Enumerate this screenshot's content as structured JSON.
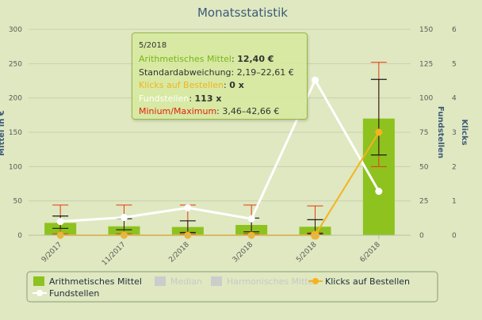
{
  "chart_data": {
    "type": "bar",
    "title": "Monatsstatistik",
    "categories": [
      "9/2017",
      "11/2017",
      "2/2018",
      "3/2018",
      "5/2018",
      "6/2018"
    ],
    "y_left": {
      "label": "Mittel in €",
      "ylim": [
        0,
        300
      ],
      "ticks": [
        0,
        50,
        100,
        150,
        200,
        250,
        300
      ]
    },
    "y_right1": {
      "label": "Fundstellen",
      "ylim": [
        0,
        150
      ],
      "ticks": [
        0,
        25,
        50,
        75,
        100,
        125,
        150
      ]
    },
    "y_right2": {
      "label": "Klicks",
      "ylim": [
        0,
        6
      ],
      "ticks": [
        0,
        1,
        2,
        3,
        4,
        5,
        6
      ]
    },
    "grid": true,
    "legend_placement": "bottom",
    "series": [
      {
        "name": "Arithmetisches Mittel",
        "type": "bar",
        "axis": "left",
        "color": "#8dc21f",
        "values": [
          18,
          13,
          12,
          15,
          12.4,
          170
        ],
        "error_min": [
          2,
          2,
          2,
          2,
          3.46,
          100
        ],
        "error_max": [
          44,
          44,
          44,
          44,
          42.66,
          252
        ],
        "std_low": [
          10,
          8,
          4,
          5,
          2.19,
          117
        ],
        "std_high": [
          28,
          24,
          21,
          25,
          22.61,
          227
        ]
      },
      {
        "name": "Median",
        "type": "bar",
        "axis": "left",
        "color": "#cccccc",
        "hidden": true
      },
      {
        "name": "Harmonisches Mittel",
        "type": "bar",
        "axis": "left",
        "color": "#cccccc",
        "hidden": true
      },
      {
        "name": "Klicks auf Bestellen",
        "type": "line",
        "axis": "right2",
        "color": "#f5b320",
        "values": [
          0,
          0,
          0,
          0,
          0,
          3
        ]
      },
      {
        "name": "Fundstellen",
        "type": "line",
        "axis": "right1",
        "color": "#ffffff",
        "values": [
          10,
          13,
          20,
          12,
          113,
          32
        ]
      }
    ],
    "tooltip": {
      "header": "5/2018",
      "rows": [
        {
          "label": "Arithmetisches Mittel",
          "value": "12,40 €",
          "color": "#7cb518"
        },
        {
          "label": "Standardabweichung",
          "value": "2,19–22,61 €",
          "color": "#333333"
        },
        {
          "label": "Klicks auf Bestellen",
          "value": "0 x",
          "color": "#f5b320"
        },
        {
          "label": "Fundstellen",
          "value": "113 x",
          "color": "#ffffff"
        },
        {
          "label": "Minium/Maximum",
          "value": "3,46–42,66 €",
          "color": "#e02010"
        }
      ]
    }
  }
}
